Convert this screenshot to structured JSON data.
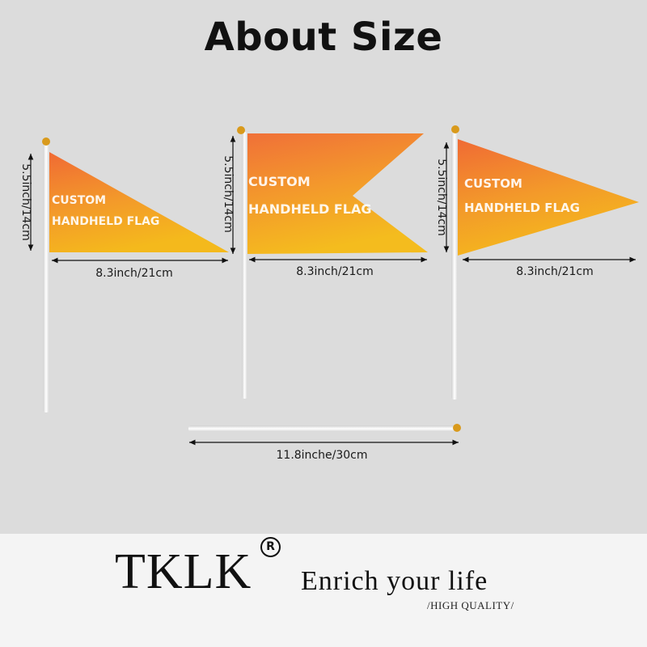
{
  "title": "About Size",
  "flags": [
    {
      "shape": "triangle",
      "text_line1": "CUSTOM",
      "text_line2": "HANDHELD FLAG",
      "height_label": "5.5inch/14cm",
      "width_label": "8.3inch/21cm"
    },
    {
      "shape": "swallowtail",
      "text_line1": "CUSTOM",
      "text_line2": "HANDHELD FLAG",
      "height_label": "5.5inch/14cm",
      "width_label": "8.3inch/21cm"
    },
    {
      "shape": "pennant",
      "text_line1": "CUSTOM",
      "text_line2": "HANDHELD FLAG",
      "height_label": "5.5inch/14cm",
      "width_label": "8.3inch/21cm"
    }
  ],
  "stick": {
    "length_label": "11.8inche/30cm"
  },
  "brand": {
    "name": "TKLK",
    "registered": "R",
    "slogan": "Enrich your life",
    "tagline": "/HIGH QUALITY/"
  },
  "colors": {
    "flag_top": "#f07a3c",
    "flag_bottom": "#f4b21e",
    "background": "#dcdcdc",
    "footer": "#f4f4f4"
  }
}
